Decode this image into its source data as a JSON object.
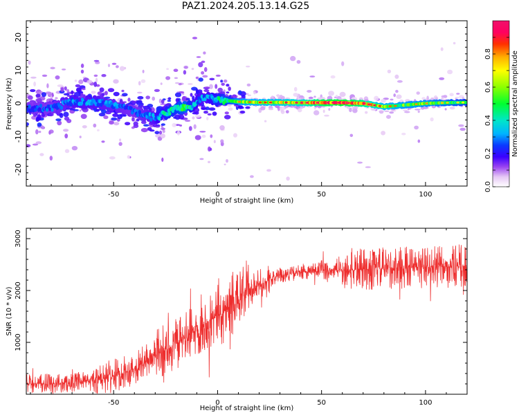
{
  "figure": {
    "title": "PAZ1.2024.205.13.14.G25"
  },
  "chart_data": [
    {
      "type": "heatmap",
      "xlabel": "Height of straight line (km)",
      "ylabel": "Frequency (Hz)",
      "xlim": [
        -92,
        120
      ],
      "ylim": [
        -25,
        25
      ],
      "xticks": [
        -50,
        0,
        50,
        100
      ],
      "yticks": [
        -20,
        -10,
        0,
        10,
        20
      ],
      "colorbar": {
        "label": "Normalized spectral amplitude",
        "range": [
          0,
          1
        ],
        "ticks": [
          0.0,
          0.2,
          0.4,
          0.6,
          0.8
        ],
        "colormap": "gist_ncar-like (white-purple-blue-cyan-green-yellow-orange-red-pink)"
      },
      "ridge": {
        "description": "dominant frequency ridge",
        "x": [
          -92,
          -80,
          -70,
          -60,
          -50,
          -40,
          -30,
          -25,
          -20,
          -15,
          -12,
          -8,
          -5,
          -2,
          0,
          5,
          10,
          20,
          30,
          40,
          50,
          60,
          70,
          80,
          90,
          100,
          110,
          120
        ],
        "y": [
          -1.5,
          -1.5,
          0.5,
          0.5,
          -0.5,
          -2.5,
          -4.5,
          -3.0,
          -1.5,
          -1.0,
          -1.0,
          1.5,
          2.0,
          1.5,
          1.0,
          0.8,
          0.5,
          0.3,
          0.3,
          0.2,
          0.2,
          0.2,
          0.0,
          -1.0,
          -0.5,
          0.0,
          0.2,
          0.3
        ],
        "amplitude": [
          0.25,
          0.25,
          0.3,
          0.3,
          0.28,
          0.25,
          0.3,
          0.4,
          0.45,
          0.5,
          0.35,
          0.3,
          0.3,
          0.35,
          0.4,
          0.45,
          0.55,
          0.6,
          0.65,
          0.7,
          0.85,
          0.9,
          0.8,
          0.6,
          0.55,
          0.55,
          0.5,
          0.45
        ]
      }
    },
    {
      "type": "line",
      "xlabel": "Height of straight line (km)",
      "ylabel": "SNR (10 * v/v)",
      "xlim": [
        -92,
        120
      ],
      "ylim": [
        0,
        3200
      ],
      "xticks": [
        -50,
        0,
        50,
        100
      ],
      "yticks": [
        1000,
        2000,
        3000
      ],
      "color": "#ee2d2d",
      "series": [
        {
          "x": [
            -92,
            -80,
            -70,
            -60,
            -50,
            -40,
            -30,
            -25,
            -20,
            -15,
            -10,
            -5,
            0,
            5,
            10,
            15,
            20,
            30,
            40,
            50,
            60,
            70,
            80,
            90,
            100,
            110,
            120
          ],
          "y": [
            200,
            200,
            220,
            250,
            350,
            500,
            750,
            850,
            950,
            1100,
            1250,
            1400,
            1500,
            1650,
            1800,
            1950,
            2100,
            2300,
            2350,
            2380,
            2400,
            2400,
            2420,
            2450,
            2450,
            2460,
            2470
          ]
        }
      ]
    }
  ]
}
